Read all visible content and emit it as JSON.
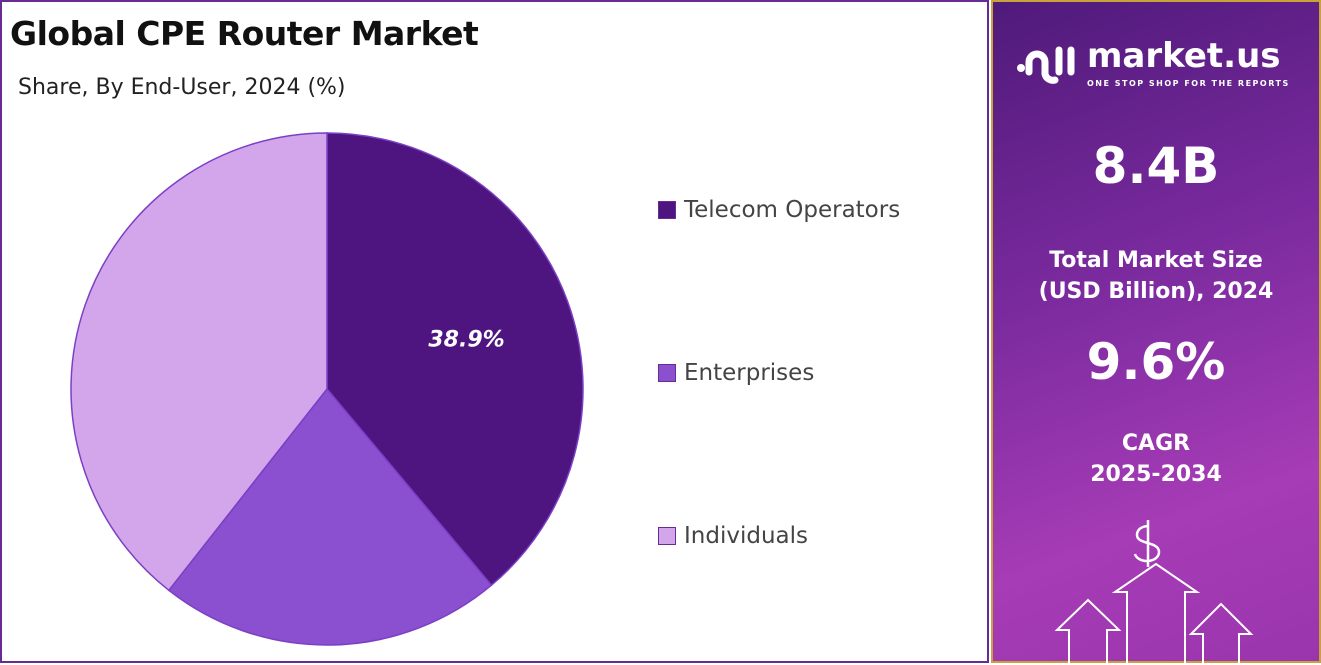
{
  "chart_data": {
    "type": "pie",
    "title": "Global CPE Router Market",
    "subtitle": "Share, By End-User, 2024 (%)",
    "categories": [
      "Telecom Operators",
      "Enterprises",
      "Individuals"
    ],
    "values": [
      38.9,
      21.7,
      39.4
    ],
    "colors": [
      "#4e1580",
      "#8a50d0",
      "#d3a6ec"
    ],
    "data_labels": [
      "38.9%",
      "",
      ""
    ],
    "legend_position": "right"
  },
  "panel": {
    "logo_name": "market.us",
    "logo_tagline": "ONE STOP SHOP FOR THE REPORTS",
    "market_size": "8.4B",
    "market_size_label": [
      "Total Market Size",
      "(USD Billion), 2024"
    ],
    "cagr": "9.6%",
    "cagr_label": [
      "CAGR",
      "2025-2034"
    ]
  }
}
